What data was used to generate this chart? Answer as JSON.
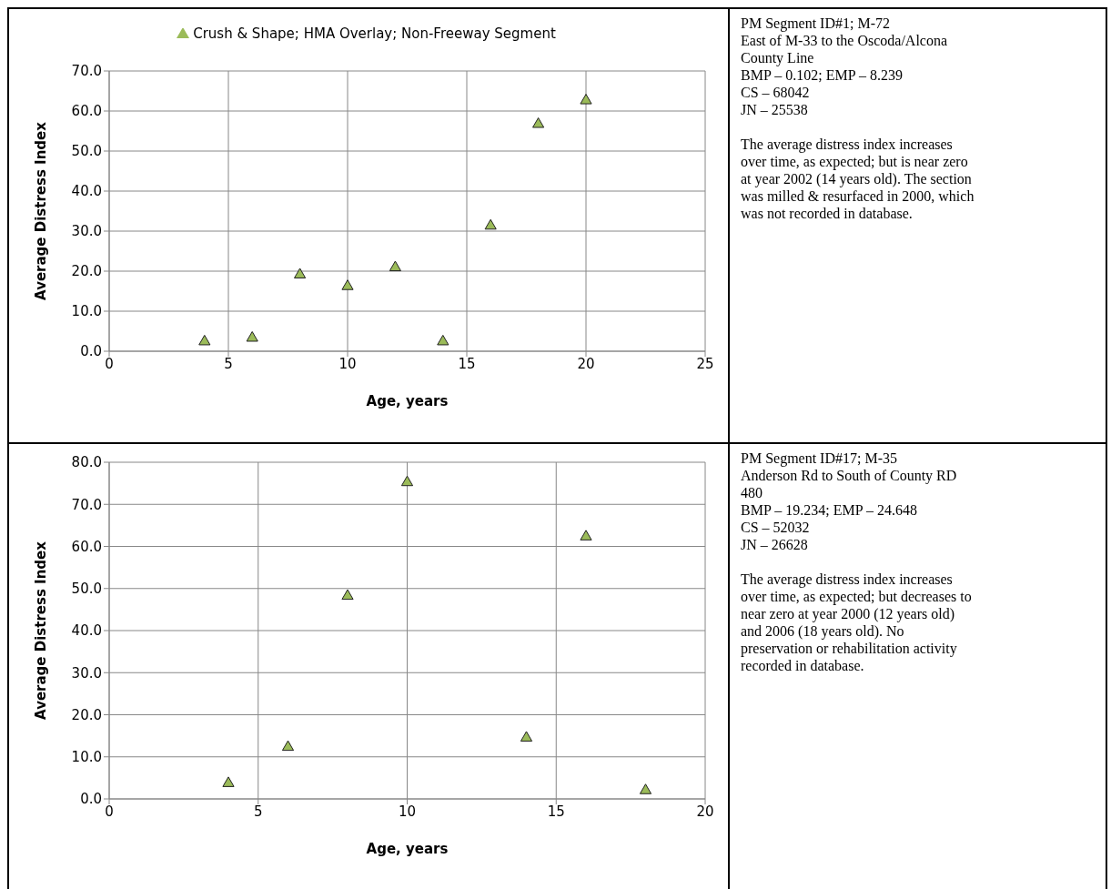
{
  "chart_data": [
    {
      "type": "scatter",
      "xlabel": "Age, years",
      "ylabel": "Average Distress Index",
      "marker": "triangle",
      "grid": true,
      "legend": "top",
      "series": [
        {
          "name": "Crush & Shape; HMA Overlay; Non-Freeway Segment",
          "color": "#9bbb59",
          "x": [
            4,
            6,
            8,
            10,
            12,
            14,
            16,
            18,
            20
          ],
          "values": [
            2.4,
            3.3,
            19.1,
            16.2,
            20.9,
            2.4,
            31.3,
            56.7,
            62.6
          ]
        }
      ],
      "xlim": [
        0,
        25
      ],
      "xticks": [
        0,
        5,
        10,
        15,
        20,
        25
      ],
      "ylim": [
        0,
        70
      ],
      "yticks": [
        {
          "value": 0,
          "label": "0.0"
        },
        {
          "value": 10,
          "label": "10.0"
        },
        {
          "value": 20,
          "label": "20.0"
        },
        {
          "value": 30,
          "label": "30.0"
        },
        {
          "value": 40,
          "label": "40.0"
        },
        {
          "value": 50,
          "label": "50.0"
        },
        {
          "value": 60,
          "label": "60.0"
        },
        {
          "value": 70,
          "label": "70.0"
        }
      ],
      "annotations": [
        "PM Segment ID#1; M-72",
        "East of M-33 to the Oscoda/Alcona County Line",
        "BMP – 0.102; EMP – 8.239",
        "CS – 68042",
        "JN – 25538",
        "The average distress index increases over time, as expected; but is near zero at year 2002 (14 years old). The section was milled & resurfaced in 2000, which was not recorded in database."
      ]
    },
    {
      "type": "scatter",
      "xlabel": "Age, years",
      "ylabel": "Average Distress Index",
      "marker": "triangle",
      "grid": true,
      "series": [
        {
          "color": "#9bbb59",
          "x": [
            4,
            6,
            8,
            10,
            14,
            16,
            18
          ],
          "values": [
            3.7,
            12.3,
            48.2,
            75.2,
            14.5,
            62.3,
            2.0
          ]
        }
      ],
      "xlim": [
        0,
        20
      ],
      "xticks": [
        0,
        5,
        10,
        15,
        20
      ],
      "ylim": [
        0,
        80
      ],
      "yticks": [
        {
          "value": 0,
          "label": "0.0"
        },
        {
          "value": 10,
          "label": "10.0"
        },
        {
          "value": 20,
          "label": "20.0"
        },
        {
          "value": 30,
          "label": "30.0"
        },
        {
          "value": 40,
          "label": "40.0"
        },
        {
          "value": 50,
          "label": "50.0"
        },
        {
          "value": 60,
          "label": "60.0"
        },
        {
          "value": 70,
          "label": "70.0"
        },
        {
          "value": 80,
          "label": "80.0"
        }
      ],
      "annotations": [
        "PM Segment ID#17; M-35",
        "Anderson Rd to South of County RD 480",
        "BMP – 19.234; EMP – 24.648",
        "CS – 52032",
        "JN – 26628",
        "The average distress index increases over time, as expected; but decreases to near zero at year 2000 (12 years old) and 2006 (18 years old).  No preservation or rehabilitation activity recorded in database."
      ]
    }
  ]
}
